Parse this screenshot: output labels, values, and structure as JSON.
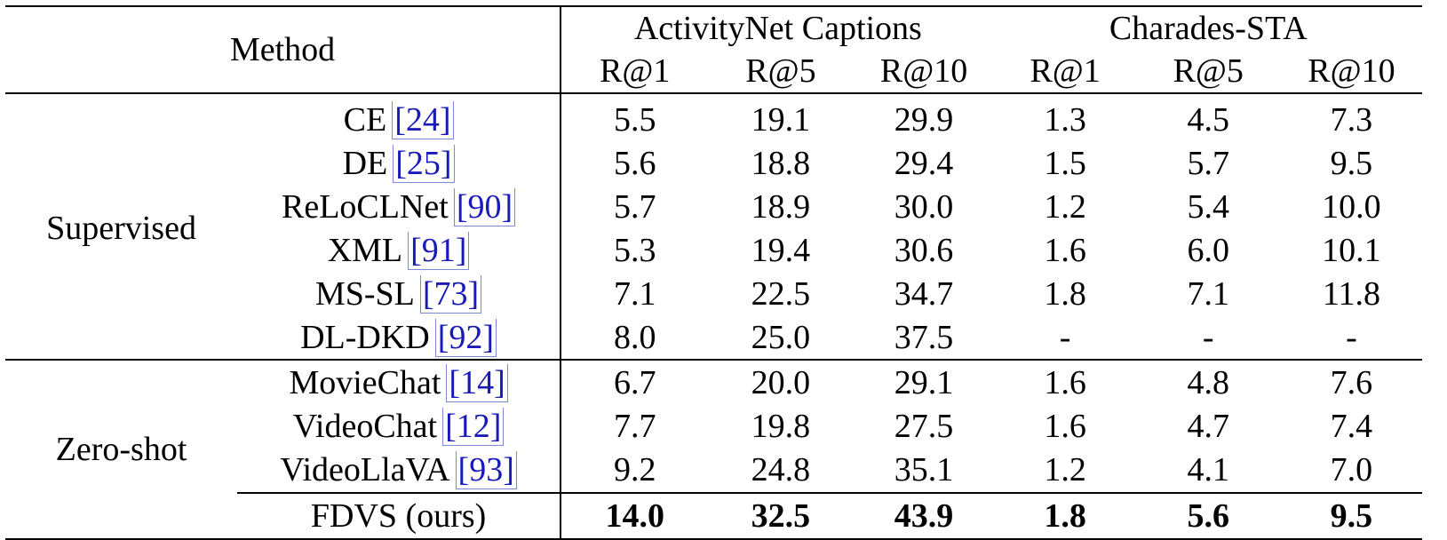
{
  "header": {
    "method": "Method",
    "dataset_a": "ActivityNet Captions",
    "dataset_b": "Charades-STA",
    "metrics": [
      "R@1",
      "R@5",
      "R@10",
      "R@1",
      "R@5",
      "R@10"
    ]
  },
  "groups": {
    "supervised": "Supervised",
    "zero_shot": "Zero-shot"
  },
  "rows": [
    {
      "name": "CE",
      "ref": "[24]",
      "v": [
        "5.5",
        "19.1",
        "29.9",
        "1.3",
        "4.5",
        "7.3"
      ]
    },
    {
      "name": "DE",
      "ref": "[25]",
      "v": [
        "5.6",
        "18.8",
        "29.4",
        "1.5",
        "5.7",
        "9.5"
      ]
    },
    {
      "name": "ReLoCLNet",
      "ref": "[90]",
      "v": [
        "5.7",
        "18.9",
        "30.0",
        "1.2",
        "5.4",
        "10.0"
      ]
    },
    {
      "name": "XML",
      "ref": "[91]",
      "v": [
        "5.3",
        "19.4",
        "30.6",
        "1.6",
        "6.0",
        "10.1"
      ]
    },
    {
      "name": "MS-SL",
      "ref": "[73]",
      "v": [
        "7.1",
        "22.5",
        "34.7",
        "1.8",
        "7.1",
        "11.8"
      ]
    },
    {
      "name": "DL-DKD",
      "ref": "[92]",
      "v": [
        "8.0",
        "25.0",
        "37.5",
        "-",
        "-",
        "-"
      ]
    },
    {
      "name": "MovieChat",
      "ref": "[14]",
      "v": [
        "6.7",
        "20.0",
        "29.1",
        "1.6",
        "4.8",
        "7.6"
      ]
    },
    {
      "name": "VideoChat",
      "ref": "[12]",
      "v": [
        "7.7",
        "19.8",
        "27.5",
        "1.6",
        "4.7",
        "7.4"
      ]
    },
    {
      "name": "VideoLlaVA",
      "ref": "[93]",
      "v": [
        "9.2",
        "24.8",
        "35.1",
        "1.2",
        "4.1",
        "7.0"
      ]
    },
    {
      "name": "FDVS (ours)",
      "ref": "",
      "v": [
        "14.0",
        "32.5",
        "43.9",
        "1.8",
        "5.6",
        "9.5"
      ]
    }
  ]
}
